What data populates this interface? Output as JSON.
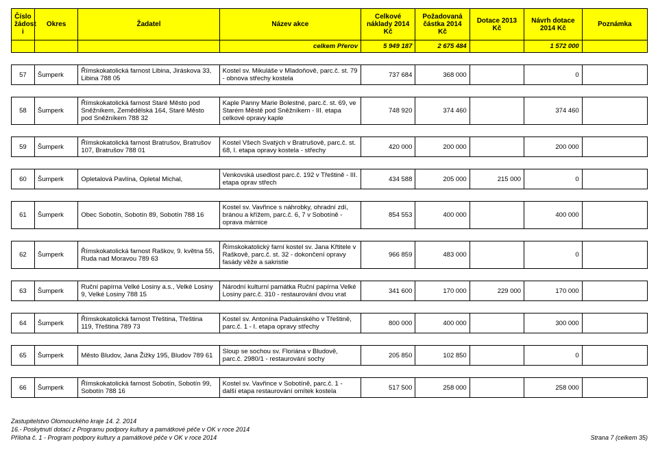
{
  "columns": [
    "Číslo žádost i",
    "Okres",
    "Žadatel",
    "Název akce",
    "Celkové náklady 2014 Kč",
    "Požadovaná částka 2014 Kč",
    "Dotace 2013 Kč",
    "Návrh dotace 2014  Kč",
    "Poznámka"
  ],
  "total": {
    "label": "celkem Přerov",
    "celkove": "5 949 187",
    "pozad": "2 675 484",
    "d2013": "",
    "navrh": "1 572 000",
    "pozn": ""
  },
  "rows": [
    {
      "cislo": "57",
      "okres": "Šumperk",
      "zadatel": "Římskokatolická farnost Libina, Jiráskova 33, Libina 788 05",
      "akce": "Kostel sv. Mikuláše v Mladoňově, parc.č. st. 79 - obnova střechy kostela",
      "celkove": "737 684",
      "pozad": "368 000",
      "d2013": "",
      "navrh": "0",
      "pozn": ""
    },
    {
      "cislo": "58",
      "okres": "Šumperk",
      "zadatel": "Římskokatolická farnost Staré Město pod Sněžníkem, Zemědělská 164, Staré Město pod Sněžníkem 788 32",
      "akce": "Kaple Panny Marie Bolestné, parc.č. st. 69, ve Starém Městě pod Sněžníkem - III. etapa celkové opravy kaple",
      "celkove": "748 920",
      "pozad": "374 460",
      "d2013": "",
      "navrh": "374 460",
      "pozn": ""
    },
    {
      "cislo": "59",
      "okres": "Šumperk",
      "zadatel": "Římskokatolická farnost Bratrušov, Bratrušov 107, Bratrušov 788 01",
      "akce": "Kostel Všech Svatých v Bratrušově, parc.č. st.  68, I. etapa opravy kostela - střechy",
      "celkove": "420 000",
      "pozad": "200 000",
      "d2013": "",
      "navrh": "200 000",
      "pozn": ""
    },
    {
      "cislo": "60",
      "okres": "Šumperk",
      "zadatel": "Opletalová Pavlína, Opletal Michal,",
      "akce": "Venkovská usedlost parc.č. 192 v Třeštině - III. etapa oprav střech",
      "celkove": "434 588",
      "pozad": "205 000",
      "d2013": "215 000",
      "navrh": "0",
      "pozn": ""
    },
    {
      "cislo": "61",
      "okres": "Šumperk",
      "zadatel": "Obec Sobotín, Sobotín 89, Sobotín 788 16",
      "akce": "Kostel sv. Vavřince s náhrobky, ohradní zdí, bránou a křížem, parc.č. 6, 7 v Sobotíně - oprava márnice",
      "celkove": "854 553",
      "pozad": "400 000",
      "d2013": "",
      "navrh": "400 000",
      "pozn": ""
    },
    {
      "cislo": "62",
      "okres": "Šumperk",
      "zadatel": "Římskokatolická farnost Raškov, 9. května 55, Ruda nad Moravou 789 63",
      "akce": "Římskokatolický farní kostel sv. Jana Křtitele v Raškově, parc.č. st. 32 - dokončení opravy fasády věže a sakristie",
      "celkove": "966 859",
      "pozad": "483 000",
      "d2013": "",
      "navrh": "0",
      "pozn": ""
    },
    {
      "cislo": "63",
      "okres": "Šumperk",
      "zadatel": "Ruční papírna Velké Losiny a.s., Velké Losiny 9, Velké Losiny 788 15",
      "akce": "Národní kulturní památka Ruční papírna Velké Losiny parc.č. 310 - restaurování dvou vrat",
      "celkove": "341 600",
      "pozad": "170 000",
      "d2013": "229 000",
      "navrh": "170 000",
      "pozn": ""
    },
    {
      "cislo": "64",
      "okres": "Šumperk",
      "zadatel": "Římskokatolická farnost Třeština, Třeština 119, Třeština 789 73",
      "akce": "Kostel sv. Antonína Paduánského v Třeštině, parc.č. 1 - I. etapa opravy střechy",
      "celkove": "800 000",
      "pozad": "400 000",
      "d2013": "",
      "navrh": "300 000",
      "pozn": ""
    },
    {
      "cislo": "65",
      "okres": "Šumperk",
      "zadatel": "Město Bludov, Jana Žižky 195, Bludov 789 61",
      "akce": "Sloup se sochou sv. Floriána v Bludově, parc.č. 2980/1 - restaurování sochy",
      "celkove": "205 850",
      "pozad": "102 850",
      "d2013": "",
      "navrh": "0",
      "pozn": ""
    },
    {
      "cislo": "66",
      "okres": "Šumperk",
      "zadatel": "Římskokatolická farnost Sobotín, Sobotín 99, Sobotín 788 16",
      "akce": "Kostel sv. Vavřince v Sobotíně, parc.č. 1 - další etapa restaurování omítek kostela",
      "celkove": "517 500",
      "pozad": "258 000",
      "d2013": "",
      "navrh": "258 000",
      "pozn": ""
    }
  ],
  "footer": {
    "line1": "Zastupitelstvo Olomouckého kraje 14. 2. 2014",
    "line2": "16.- Poskytnutí dotací z Programu podpory kultury a památkové péče v OK v roce 2014",
    "line3": "Příloha č. 1 - Program podpory kultury a památkové péče v OK v roce 2014",
    "page": "Strana 7 (celkem 35)"
  }
}
